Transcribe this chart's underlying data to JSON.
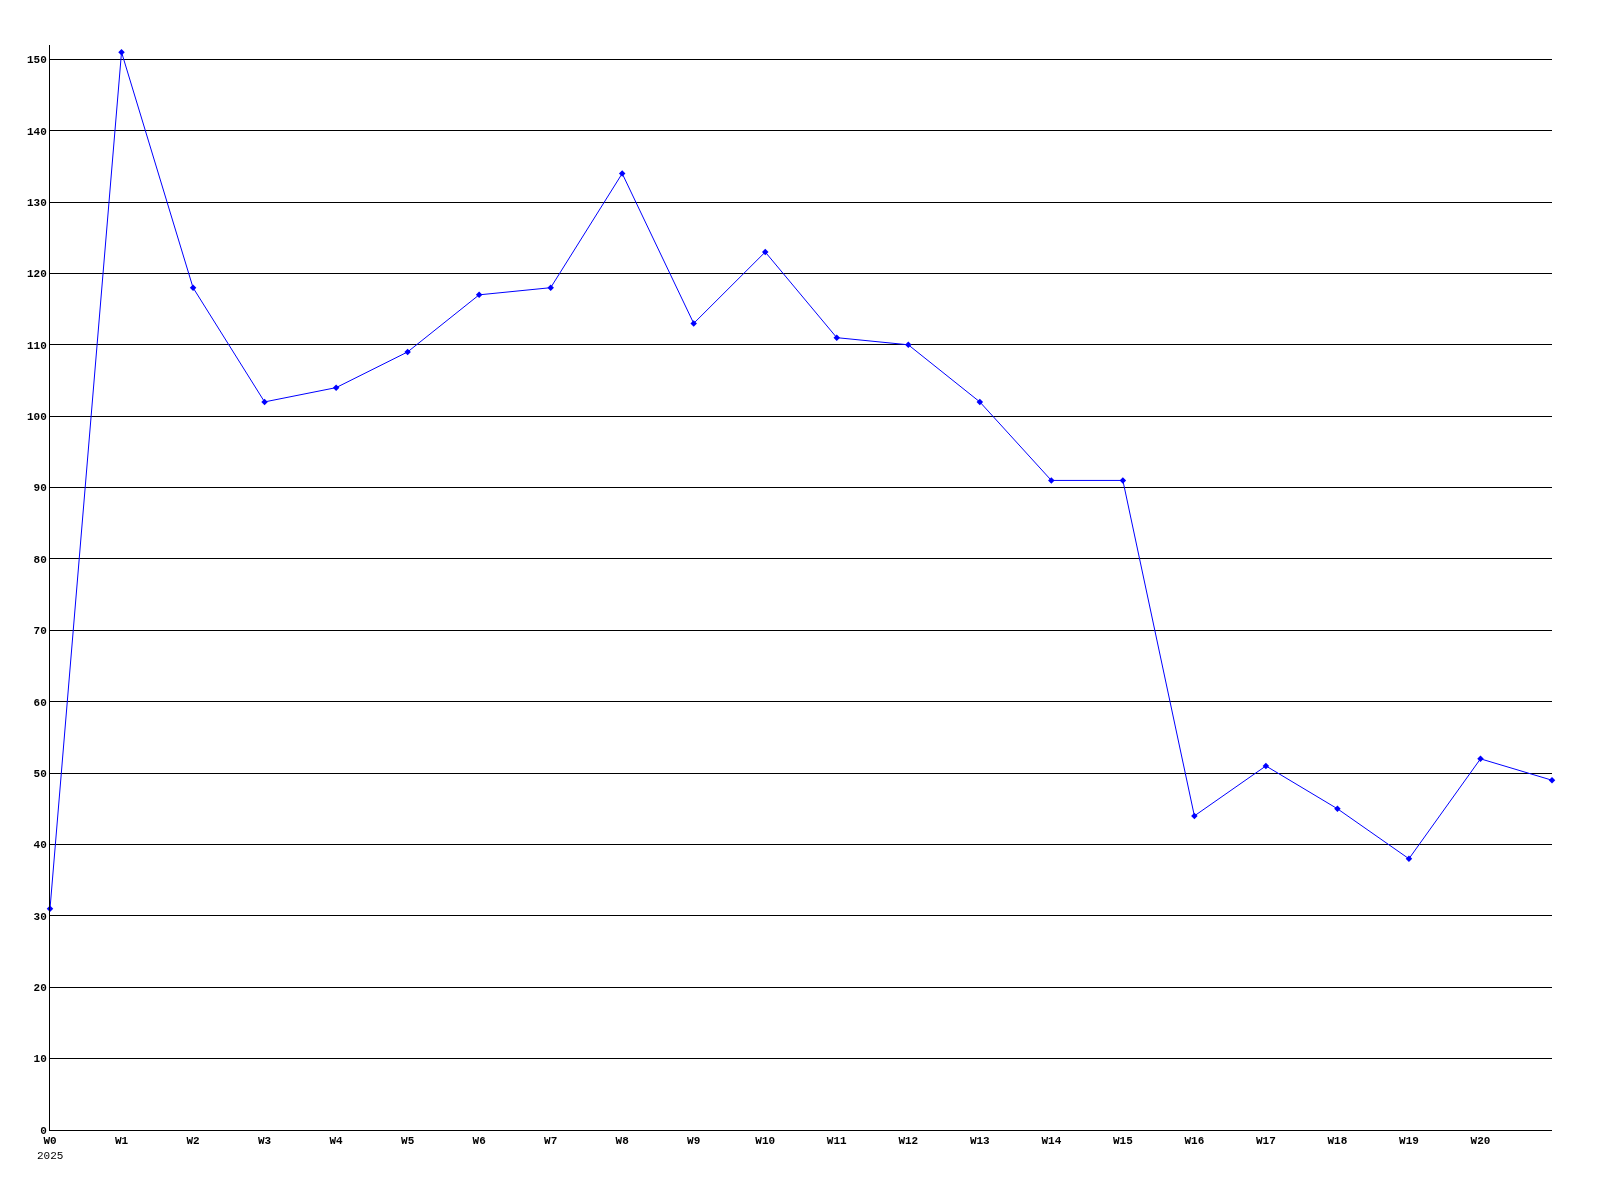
{
  "chart_data": {
    "type": "line",
    "categories": [
      "W0",
      "W1",
      "W2",
      "W3",
      "W4",
      "W5",
      "W6",
      "W7",
      "W8",
      "W9",
      "W10",
      "W11",
      "W12",
      "W13",
      "W14",
      "W15",
      "W16",
      "W17",
      "W18",
      "W19",
      "W20",
      null
    ],
    "series": [
      {
        "color": "#0000ff",
        "values": [
          31,
          151,
          118,
          102,
          104,
          109,
          117,
          118,
          134,
          113,
          123,
          111,
          110,
          102,
          91,
          91,
          44,
          51,
          45,
          38,
          52,
          49
        ]
      }
    ],
    "ylim": [
      0,
      152
    ],
    "yticks": [
      0,
      10,
      20,
      30,
      40,
      50,
      60,
      70,
      80,
      90,
      100,
      110,
      120,
      130,
      140,
      150
    ],
    "grid": "y",
    "marker": "diamond",
    "line_style": "solid",
    "annotations": [
      "2025"
    ]
  }
}
